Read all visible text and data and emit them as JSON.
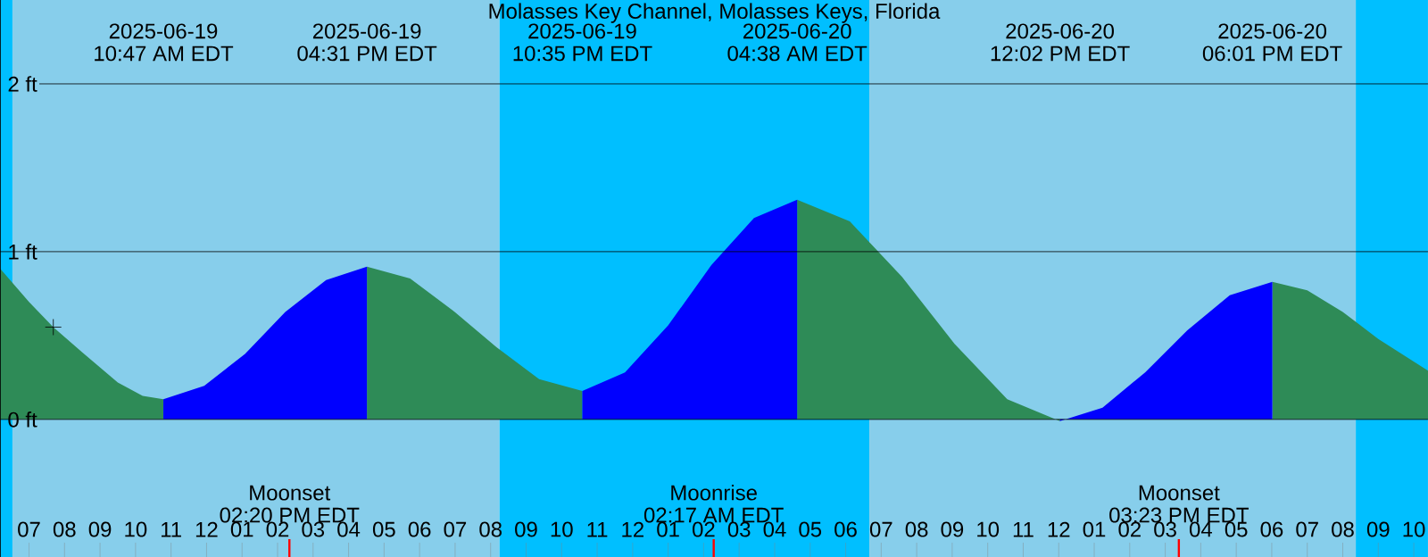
{
  "chart_data": {
    "type": "area",
    "title": "Molasses Key Channel, Molasses Keys, Florida",
    "xlim": [
      "2025-06-19T06:11",
      "2025-06-20T22:24"
    ],
    "ylim": [
      -0.82,
      2.5
    ],
    "xticks": [
      {
        "value": "2025-06-19T07:00",
        "label": "07"
      },
      {
        "value": "2025-06-19T08:00",
        "label": "08"
      },
      {
        "value": "2025-06-19T09:00",
        "label": "09"
      },
      {
        "value": "2025-06-19T10:00",
        "label": "10"
      },
      {
        "value": "2025-06-19T11:00",
        "label": "11"
      },
      {
        "value": "2025-06-19T12:00",
        "label": "12"
      },
      {
        "value": "2025-06-19T13:00",
        "label": "01"
      },
      {
        "value": "2025-06-19T14:00",
        "label": "02"
      },
      {
        "value": "2025-06-19T15:00",
        "label": "03"
      },
      {
        "value": "2025-06-19T16:00",
        "label": "04"
      },
      {
        "value": "2025-06-19T17:00",
        "label": "05"
      },
      {
        "value": "2025-06-19T18:00",
        "label": "06"
      },
      {
        "value": "2025-06-19T19:00",
        "label": "07"
      },
      {
        "value": "2025-06-19T20:00",
        "label": "08"
      },
      {
        "value": "2025-06-19T21:00",
        "label": "09"
      },
      {
        "value": "2025-06-19T22:00",
        "label": "10"
      },
      {
        "value": "2025-06-19T23:00",
        "label": "11"
      },
      {
        "value": "2025-06-20T00:00",
        "label": "12"
      },
      {
        "value": "2025-06-20T01:00",
        "label": "01"
      },
      {
        "value": "2025-06-20T02:00",
        "label": "02"
      },
      {
        "value": "2025-06-20T03:00",
        "label": "03"
      },
      {
        "value": "2025-06-20T04:00",
        "label": "04"
      },
      {
        "value": "2025-06-20T05:00",
        "label": "05"
      },
      {
        "value": "2025-06-20T06:00",
        "label": "06"
      },
      {
        "value": "2025-06-20T07:00",
        "label": "07"
      },
      {
        "value": "2025-06-20T08:00",
        "label": "08"
      },
      {
        "value": "2025-06-20T09:00",
        "label": "09"
      },
      {
        "value": "2025-06-20T10:00",
        "label": "10"
      },
      {
        "value": "2025-06-20T11:00",
        "label": "11"
      },
      {
        "value": "2025-06-20T12:00",
        "label": "12"
      },
      {
        "value": "2025-06-20T13:00",
        "label": "01"
      },
      {
        "value": "2025-06-20T14:00",
        "label": "02"
      },
      {
        "value": "2025-06-20T15:00",
        "label": "03"
      },
      {
        "value": "2025-06-20T16:00",
        "label": "04"
      },
      {
        "value": "2025-06-20T17:00",
        "label": "05"
      },
      {
        "value": "2025-06-20T18:00",
        "label": "06"
      },
      {
        "value": "2025-06-20T19:00",
        "label": "07"
      },
      {
        "value": "2025-06-20T20:00",
        "label": "08"
      },
      {
        "value": "2025-06-20T21:00",
        "label": "09"
      },
      {
        "value": "2025-06-20T22:00",
        "label": "10"
      }
    ],
    "yticks": [
      {
        "value": 0,
        "label": "0 ft"
      },
      {
        "value": 1,
        "label": "1 ft"
      },
      {
        "value": 2,
        "label": "2 ft"
      }
    ],
    "grid": "y",
    "bands": [
      {
        "axis": "x",
        "from": "2025-06-19T06:11",
        "to": "2025-06-19T06:32",
        "color": "#00bfff"
      },
      {
        "axis": "x",
        "from": "2025-06-19T06:32",
        "to": "2025-06-19T20:15",
        "color": "#87ceeb"
      },
      {
        "axis": "x",
        "from": "2025-06-19T20:15",
        "to": "2025-06-20T06:40",
        "color": "#00bfff"
      },
      {
        "axis": "x",
        "from": "2025-06-20T06:40",
        "to": "2025-06-20T20:22",
        "color": "#87ceeb"
      },
      {
        "axis": "x",
        "from": "2025-06-20T20:22",
        "to": "2025-06-20T22:24",
        "color": "#00bfff"
      }
    ],
    "series": [
      {
        "color": "#2e8b57",
        "x": [
          "2025-06-19T06:11",
          "2025-06-19T07:00",
          "2025-06-19T07:41",
          "2025-06-19T08:30",
          "2025-06-19T09:30",
          "2025-06-19T10:12",
          "2025-06-19T10:47",
          "2025-06-19T13:00",
          "2025-06-19T16:31",
          "2025-06-19T17:44",
          "2025-06-19T18:56",
          "2025-06-19T20:10",
          "2025-06-19T21:22",
          "2025-06-19T22:35",
          "2025-06-20T01:00",
          "2025-06-20T04:38",
          "2025-06-20T06:07",
          "2025-06-20T07:35",
          "2025-06-20T09:04",
          "2025-06-20T10:33",
          "2025-06-20T12:02",
          "2025-06-20T15:00",
          "2025-06-20T18:01",
          "2025-06-20T19:00",
          "2025-06-20T20:00",
          "2025-06-20T21:00",
          "2025-06-20T22:24"
        ],
        "values": [
          0.9,
          0.7,
          0.55,
          0.4,
          0.22,
          0.14,
          0.12,
          null,
          0.91,
          0.84,
          0.65,
          0.43,
          0.24,
          0.17,
          null,
          1.31,
          1.18,
          0.85,
          0.45,
          0.12,
          -0.01,
          null,
          0.82,
          0.77,
          0.64,
          0.48,
          0.29
        ]
      },
      {
        "color": "#0000ff",
        "x": [
          "2025-06-19T10:47",
          "2025-06-19T11:56",
          "2025-06-19T13:05",
          "2025-06-19T14:13",
          "2025-06-19T15:22",
          "2025-06-19T16:31",
          "2025-06-19T20:00",
          "2025-06-19T22:35",
          "2025-06-19T23:47",
          "2025-06-20T01:00",
          "2025-06-20T02:13",
          "2025-06-20T03:25",
          "2025-06-20T04:38",
          "2025-06-20T08:00",
          "2025-06-20T12:02",
          "2025-06-20T13:14",
          "2025-06-20T14:26",
          "2025-06-20T15:37",
          "2025-06-20T16:49",
          "2025-06-20T18:01"
        ],
        "values": [
          0.12,
          0.2,
          0.39,
          0.64,
          0.83,
          0.91,
          null,
          0.17,
          0.28,
          0.56,
          0.92,
          1.2,
          1.31,
          null,
          -0.01,
          0.07,
          0.28,
          0.53,
          0.74,
          0.82
        ]
      },
      {
        "type": "scatter",
        "marker": "cross",
        "color": "#000000",
        "x": [
          "2025-06-19T07:41"
        ],
        "values": [
          0.55
        ]
      }
    ],
    "ref_lines": [
      {
        "axis": "x",
        "value": "2025-06-19T14:20",
        "label": "Moonset 02:20 PM EDT",
        "color": "#ff0000"
      },
      {
        "axis": "x",
        "value": "2025-06-20T02:17",
        "label": "Moonrise 02:17 AM EDT",
        "color": "#ff0000"
      },
      {
        "axis": "x",
        "value": "2025-06-20T15:23",
        "label": "Moonset 03:23 PM EDT",
        "color": "#ff0000"
      }
    ],
    "annotations": [
      "2025-06-19 10:47 AM EDT",
      "2025-06-19 04:31 PM EDT",
      "2025-06-19 10:35 PM EDT",
      "2025-06-20 04:38 AM EDT",
      "2025-06-20 12:02 PM EDT",
      "2025-06-20 06:01 PM EDT"
    ]
  }
}
